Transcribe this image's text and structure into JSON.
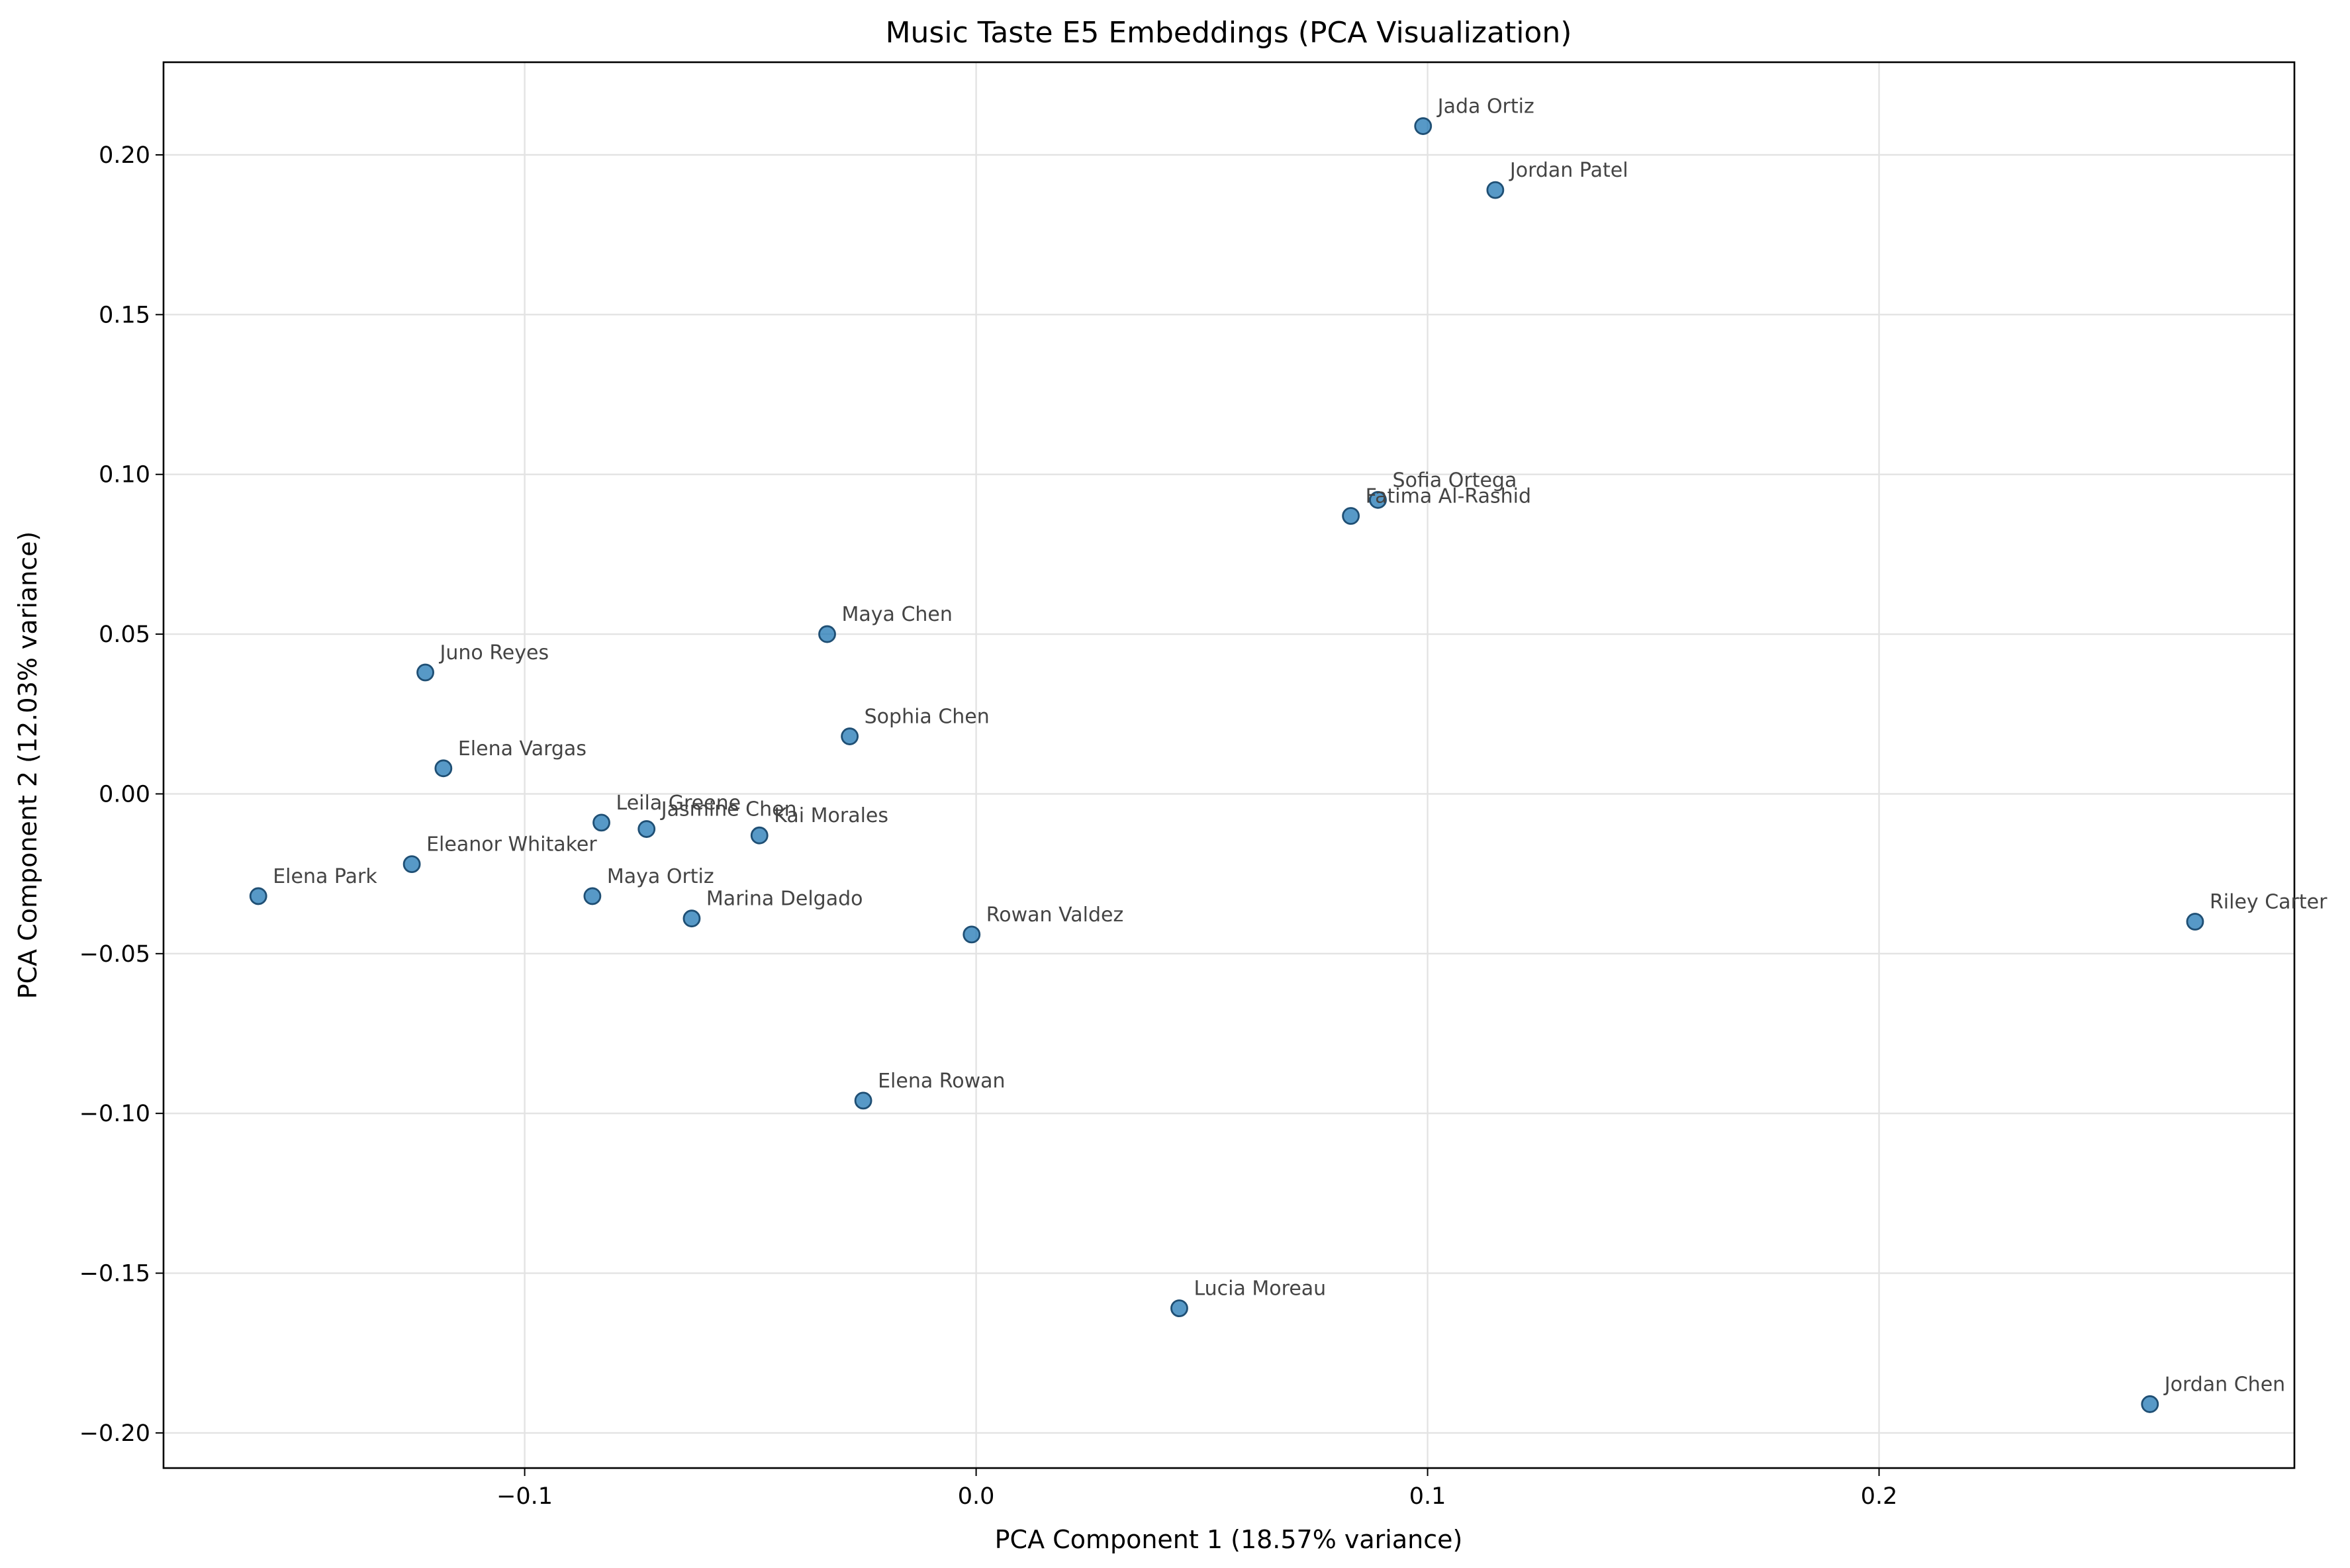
{
  "chart_data": {
    "type": "scatter",
    "title": "Music Taste E5 Embeddings (PCA Visualization)",
    "xlabel": "PCA Component 1 (18.57% variance)",
    "ylabel": "PCA Component 2 (12.03% variance)",
    "xlim": [
      -0.18,
      0.292
    ],
    "ylim": [
      -0.211,
      0.229
    ],
    "xticks": [
      -0.1,
      0.0,
      0.1,
      0.2
    ],
    "xtick_labels": [
      "−0.1",
      "0.0",
      "0.1",
      "0.2"
    ],
    "yticks": [
      -0.2,
      -0.15,
      -0.1,
      -0.05,
      0.0,
      0.05,
      0.1,
      0.15,
      0.2
    ],
    "ytick_labels": [
      "−0.20",
      "−0.15",
      "−0.10",
      "−0.05",
      "0.00",
      "0.05",
      "0.10",
      "0.15",
      "0.20"
    ],
    "grid": true,
    "color": "#1f77b4",
    "points": [
      {
        "label": "Jada Ortiz",
        "x": 0.099,
        "y": 0.209
      },
      {
        "label": "Jordan Patel",
        "x": 0.115,
        "y": 0.189
      },
      {
        "label": "Sofia Ortega",
        "x": 0.089,
        "y": 0.092
      },
      {
        "label": "Fatima Al-Rashid",
        "x": 0.083,
        "y": 0.087
      },
      {
        "label": "Maya Chen",
        "x": -0.033,
        "y": 0.05
      },
      {
        "label": "Juno Reyes",
        "x": -0.122,
        "y": 0.038
      },
      {
        "label": "Sophia Chen",
        "x": -0.028,
        "y": 0.018
      },
      {
        "label": "Elena Vargas",
        "x": -0.118,
        "y": 0.008
      },
      {
        "label": "Leila Greene",
        "x": -0.083,
        "y": -0.009
      },
      {
        "label": "Jasmine Chen",
        "x": -0.073,
        "y": -0.011
      },
      {
        "label": "Kai Morales",
        "x": -0.048,
        "y": -0.013
      },
      {
        "label": "Eleanor Whitaker",
        "x": -0.125,
        "y": -0.022
      },
      {
        "label": "Elena Park",
        "x": -0.159,
        "y": -0.032
      },
      {
        "label": "Maya Ortiz",
        "x": -0.085,
        "y": -0.032
      },
      {
        "label": "Marina Delgado",
        "x": -0.063,
        "y": -0.039
      },
      {
        "label": "Rowan Valdez",
        "x": -0.001,
        "y": -0.044
      },
      {
        "label": "Riley Carter",
        "x": 0.27,
        "y": -0.04
      },
      {
        "label": "Elena Rowan",
        "x": -0.025,
        "y": -0.096
      },
      {
        "label": "Lucia Moreau",
        "x": 0.045,
        "y": -0.161
      },
      {
        "label": "Jordan Chen",
        "x": 0.26,
        "y": -0.191
      }
    ]
  }
}
